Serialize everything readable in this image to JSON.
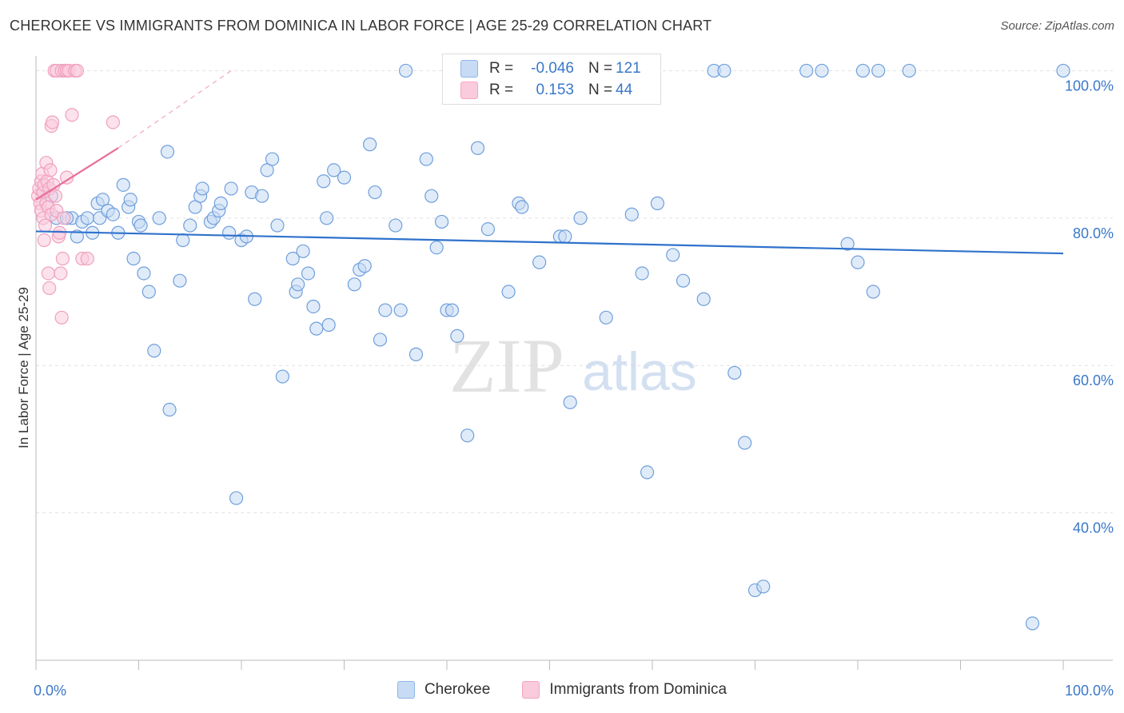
{
  "title": "CHEROKEE VS IMMIGRANTS FROM DOMINICA IN LABOR FORCE | AGE 25-29 CORRELATION CHART",
  "source": "Source: ZipAtlas.com",
  "watermark": {
    "zip": "ZIP",
    "atlas": "atlas"
  },
  "legend": {
    "r_label": "R =",
    "n_label": "N =",
    "rows": [
      {
        "series": "Cherokee",
        "r": "-0.046",
        "n": "121",
        "color": "#8fb6e8"
      },
      {
        "series": "Immigrants from Dominica",
        "r": "0.153",
        "n": "44",
        "color": "#f4a6bf"
      }
    ]
  },
  "colors": {
    "blue": "#6f9fdc",
    "blue_fill": "#c7dbf4",
    "pink": "#e86e98",
    "pink_fill": "#f9cbdc",
    "tick_text": "#3a78c9",
    "grid": "#e2e2e2"
  },
  "chart_data": {
    "type": "scatter",
    "xlabel": "",
    "ylabel": "In Labor Force | Age 25-29",
    "xlim": [
      0,
      100
    ],
    "ylim": [
      20,
      102
    ],
    "x_tick_labels": [
      {
        "value": 0,
        "label": "0.0%"
      },
      {
        "value": 100,
        "label": "100.0%"
      }
    ],
    "y_tick_labels": [
      {
        "value": 100,
        "label": "100.0%"
      },
      {
        "value": 80,
        "label": "80.0%"
      },
      {
        "value": 60,
        "label": "60.0%"
      },
      {
        "value": 40,
        "label": "40.0%"
      }
    ],
    "grid": true,
    "series": [
      {
        "name": "Cherokee",
        "trend": {
          "x": [
            0,
            100
          ],
          "y": [
            78.2,
            75.2
          ]
        },
        "points": [
          [
            3.5,
            80
          ],
          [
            4,
            77.5
          ],
          [
            4.5,
            79.5
          ],
          [
            5,
            80
          ],
          [
            5.5,
            78
          ],
          [
            6,
            82
          ],
          [
            6.2,
            80
          ],
          [
            6.5,
            82.5
          ],
          [
            7,
            81
          ],
          [
            7.5,
            80.5
          ],
          [
            8,
            78
          ],
          [
            8.5,
            84.5
          ],
          [
            9,
            81.5
          ],
          [
            9.2,
            82.5
          ],
          [
            9.5,
            74.5
          ],
          [
            10,
            79.5
          ],
          [
            10.2,
            79
          ],
          [
            10.5,
            72.5
          ],
          [
            11,
            70
          ],
          [
            11.5,
            62
          ],
          [
            12,
            80
          ],
          [
            12.8,
            89
          ],
          [
            13,
            54
          ],
          [
            14,
            71.5
          ],
          [
            14.3,
            77
          ],
          [
            15,
            79
          ],
          [
            15.5,
            81.5
          ],
          [
            16,
            83
          ],
          [
            16.2,
            84
          ],
          [
            17,
            79.5
          ],
          [
            17.3,
            80
          ],
          [
            17.8,
            81
          ],
          [
            18,
            82
          ],
          [
            18.8,
            78
          ],
          [
            19,
            84
          ],
          [
            19.5,
            42
          ],
          [
            20,
            77
          ],
          [
            20.5,
            77.5
          ],
          [
            21,
            83.5
          ],
          [
            21.3,
            69
          ],
          [
            22,
            83
          ],
          [
            22.5,
            86.5
          ],
          [
            23,
            88
          ],
          [
            23.5,
            79
          ],
          [
            24,
            58.5
          ],
          [
            25,
            74.5
          ],
          [
            25.3,
            70
          ],
          [
            25.5,
            71
          ],
          [
            26,
            75.5
          ],
          [
            26.5,
            72.5
          ],
          [
            27,
            68
          ],
          [
            27.3,
            65
          ],
          [
            28,
            85
          ],
          [
            28.3,
            80
          ],
          [
            28.5,
            65.5
          ],
          [
            29,
            86.5
          ],
          [
            30,
            85.5
          ],
          [
            31,
            71
          ],
          [
            31.5,
            73
          ],
          [
            32,
            73.5
          ],
          [
            32.5,
            90
          ],
          [
            33,
            83.5
          ],
          [
            33.5,
            63.5
          ],
          [
            34,
            67.5
          ],
          [
            35,
            79
          ],
          [
            35.5,
            67.5
          ],
          [
            36,
            100
          ],
          [
            37,
            61.5
          ],
          [
            38,
            88
          ],
          [
            38.5,
            83
          ],
          [
            39,
            76
          ],
          [
            39.5,
            79.5
          ],
          [
            40,
            67.5
          ],
          [
            40.5,
            67.5
          ],
          [
            41,
            64
          ],
          [
            42,
            50.5
          ],
          [
            43,
            89.5
          ],
          [
            44,
            78.5
          ],
          [
            46,
            70
          ],
          [
            47,
            82
          ],
          [
            47.3,
            81.5
          ],
          [
            49,
            74
          ],
          [
            51,
            77.5
          ],
          [
            51.5,
            77.5
          ],
          [
            52,
            55
          ],
          [
            53,
            80
          ],
          [
            53.5,
            100
          ],
          [
            54,
            100
          ],
          [
            55,
            100
          ],
          [
            55.5,
            66.5
          ],
          [
            55.8,
            97.5
          ],
          [
            57,
            100
          ],
          [
            58,
            80.5
          ],
          [
            59,
            72.5
          ],
          [
            59.5,
            45.5
          ],
          [
            60,
            100
          ],
          [
            60.5,
            82
          ],
          [
            62,
            75
          ],
          [
            63,
            71.5
          ],
          [
            65,
            69
          ],
          [
            66,
            100
          ],
          [
            67,
            100
          ],
          [
            68,
            59
          ],
          [
            69,
            49.5
          ],
          [
            70,
            29.5
          ],
          [
            75,
            100
          ],
          [
            76.5,
            100
          ],
          [
            79,
            76.5
          ],
          [
            80,
            74
          ],
          [
            81.5,
            70
          ],
          [
            82,
            100
          ],
          [
            85,
            100
          ],
          [
            97,
            25
          ],
          [
            70.8,
            30
          ],
          [
            57,
            100
          ],
          [
            1.5,
            83
          ],
          [
            2,
            80
          ],
          [
            3,
            80
          ],
          [
            54.5,
            100
          ],
          [
            80.5,
            100
          ],
          [
            100,
            100
          ]
        ]
      },
      {
        "name": "Immigrants from Dominica",
        "trend": {
          "x": [
            0,
            8
          ],
          "y": [
            82.5,
            89.5
          ]
        },
        "trend_ext": {
          "x": [
            8,
            19
          ],
          "y": [
            89.5,
            100
          ]
        },
        "points": [
          [
            0.2,
            83
          ],
          [
            0.3,
            84
          ],
          [
            0.4,
            82
          ],
          [
            0.5,
            81
          ],
          [
            0.5,
            85
          ],
          [
            0.6,
            86
          ],
          [
            0.7,
            80
          ],
          [
            0.7,
            83.5
          ],
          [
            0.8,
            84.5
          ],
          [
            0.8,
            77
          ],
          [
            0.9,
            79
          ],
          [
            1,
            82
          ],
          [
            1,
            87.5
          ],
          [
            1.1,
            85
          ],
          [
            1.2,
            81.5
          ],
          [
            1.2,
            72.5
          ],
          [
            1.3,
            70.5
          ],
          [
            1.3,
            84
          ],
          [
            1.4,
            86.5
          ],
          [
            1.5,
            80.5
          ],
          [
            1.5,
            92.5
          ],
          [
            1.6,
            93
          ],
          [
            1.7,
            84.5
          ],
          [
            1.8,
            100
          ],
          [
            1.9,
            83
          ],
          [
            2,
            100
          ],
          [
            2,
            81
          ],
          [
            2.2,
            77.5
          ],
          [
            2.3,
            78
          ],
          [
            2.4,
            72.5
          ],
          [
            2.5,
            100
          ],
          [
            2.5,
            66.5
          ],
          [
            2.6,
            74.5
          ],
          [
            2.7,
            80
          ],
          [
            2.8,
            100
          ],
          [
            3,
            85.5
          ],
          [
            3,
            100
          ],
          [
            3.2,
            100
          ],
          [
            3.5,
            94
          ],
          [
            3.8,
            100
          ],
          [
            4,
            100
          ],
          [
            4.5,
            74.5
          ],
          [
            5,
            74.5
          ],
          [
            7.5,
            93
          ]
        ]
      }
    ]
  },
  "bottom_legend": [
    {
      "label": "Cherokee",
      "color": "#8fb6e8"
    },
    {
      "label": "Immigrants from Dominica",
      "color": "#f4a6bf"
    }
  ]
}
